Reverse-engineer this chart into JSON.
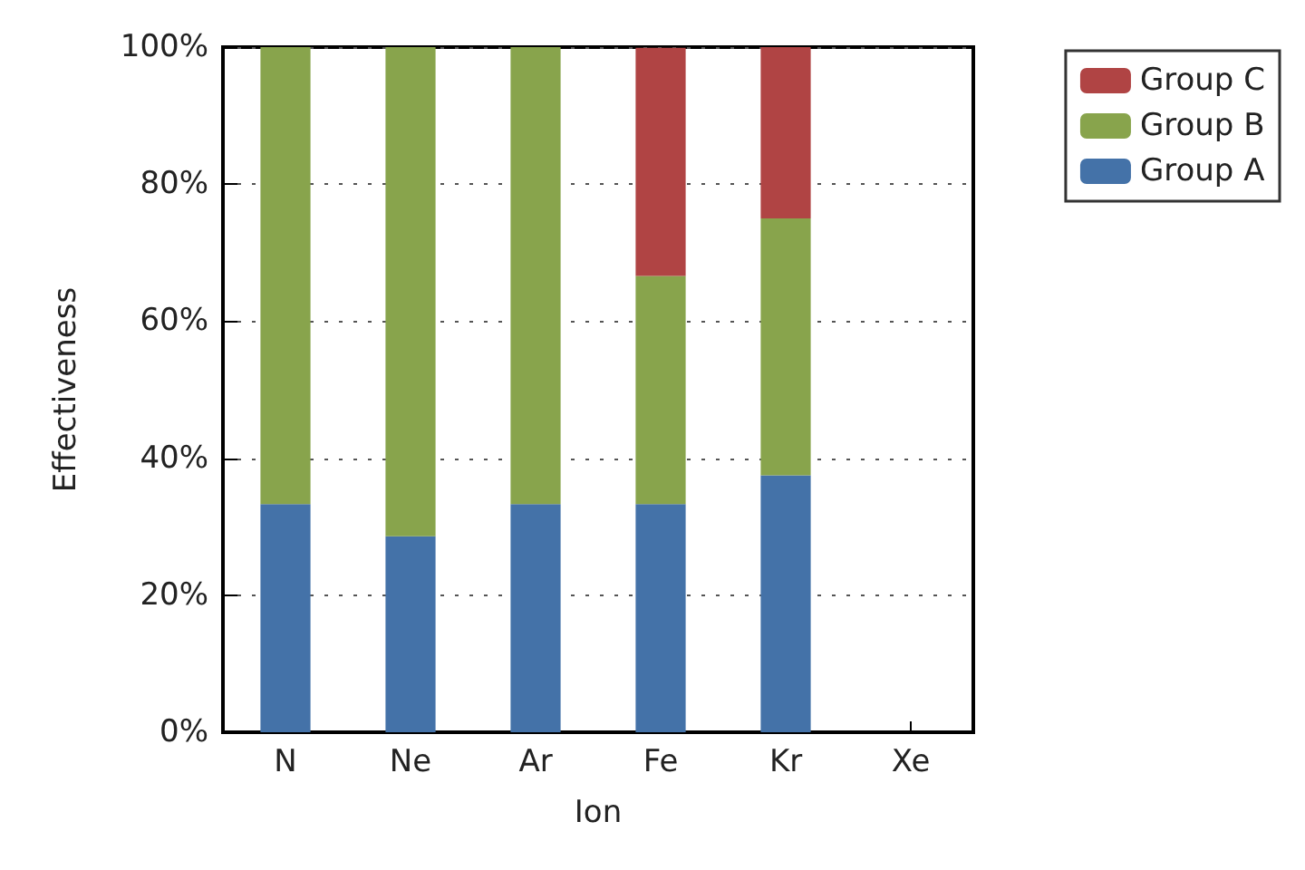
{
  "chart_data": {
    "type": "bar",
    "stacked": true,
    "xlabel": "Ion",
    "ylabel": "Effectiveness",
    "categories": [
      "N",
      "Ne",
      "Ar",
      "Fe",
      "Kr",
      "Xe"
    ],
    "series": [
      {
        "name": "Group A",
        "color": "#4472a8",
        "values": [
          33.3,
          28.6,
          33.3,
          33.3,
          37.5,
          null
        ]
      },
      {
        "name": "Group B",
        "color": "#88a44c",
        "values": [
          66.7,
          71.4,
          66.7,
          33.3,
          37.5,
          null
        ]
      },
      {
        "name": "Group C",
        "color": "#b04444",
        "values": [
          null,
          null,
          null,
          33.3,
          25,
          null
        ]
      }
    ],
    "ylim": [
      0,
      100
    ],
    "yticks": [
      {
        "value": 0,
        "label": "0%"
      },
      {
        "value": 20,
        "label": "20%"
      },
      {
        "value": 40,
        "label": "40%"
      },
      {
        "value": 60,
        "label": "60%"
      },
      {
        "value": 80,
        "label": "80%"
      },
      {
        "value": 100,
        "label": "100%"
      }
    ],
    "grid": "y",
    "legend": "top right"
  }
}
